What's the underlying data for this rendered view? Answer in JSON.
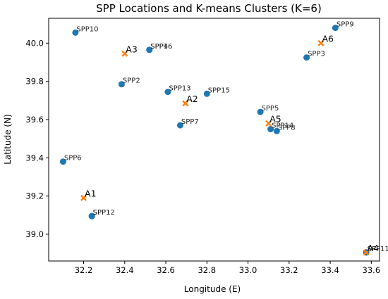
{
  "chart_data": {
    "type": "scatter",
    "title": "SPP Locations and K-means Clusters (K=6)",
    "xlabel": "Longitude (E)",
    "ylabel": "Latitude (N)",
    "xlim": [
      32.03,
      33.64
    ],
    "ylim": [
      38.86,
      40.13
    ],
    "xticks": [
      "32.2",
      "32.4",
      "32.6",
      "32.8",
      "33.0",
      "33.2",
      "33.4",
      "33.6"
    ],
    "yticks": [
      "39.0",
      "39.2",
      "39.4",
      "39.6",
      "39.8",
      "40.0"
    ],
    "grid": false,
    "legend": "none",
    "colors": {
      "spp": "#1f77b4",
      "centroid": "#ff7f0e"
    },
    "spp_points": [
      {
        "label": "SPP1",
        "x": 32.24,
        "y": 39.095
      },
      {
        "label": "SPP2",
        "x": 32.385,
        "y": 39.785
      },
      {
        "label": "SPP3",
        "x": 33.285,
        "y": 39.925
      },
      {
        "label": "SPP4",
        "x": 32.52,
        "y": 39.965
      },
      {
        "label": "SPP5",
        "x": 33.06,
        "y": 39.64
      },
      {
        "label": "SPP6",
        "x": 32.1,
        "y": 39.38
      },
      {
        "label": "SPP7",
        "x": 32.67,
        "y": 39.57
      },
      {
        "label": "SPP8",
        "x": 33.14,
        "y": 39.54
      },
      {
        "label": "SPP9",
        "x": 33.425,
        "y": 40.08
      },
      {
        "label": "SPP10",
        "x": 32.16,
        "y": 40.055
      },
      {
        "label": "SPP11",
        "x": 33.575,
        "y": 38.905
      },
      {
        "label": "SPP12",
        "x": 32.24,
        "y": 39.095
      },
      {
        "label": "SPP13",
        "x": 32.61,
        "y": 39.745
      },
      {
        "label": "SPP14",
        "x": 33.11,
        "y": 39.55
      },
      {
        "label": "SPP15",
        "x": 32.8,
        "y": 39.735
      },
      {
        "label": "SPP16",
        "x": 32.52,
        "y": 39.965
      },
      {
        "label": "SP",
        "x": 33.575,
        "y": 38.905
      }
    ],
    "centroids": [
      {
        "label": "A1",
        "x": 32.2,
        "y": 39.19
      },
      {
        "label": "A2",
        "x": 32.695,
        "y": 39.685
      },
      {
        "label": "A3",
        "x": 32.4,
        "y": 39.945
      },
      {
        "label": "A4",
        "x": 33.575,
        "y": 38.905
      },
      {
        "label": "A5",
        "x": 33.1,
        "y": 39.58
      },
      {
        "label": "A6",
        "x": 33.355,
        "y": 40.0
      }
    ]
  }
}
